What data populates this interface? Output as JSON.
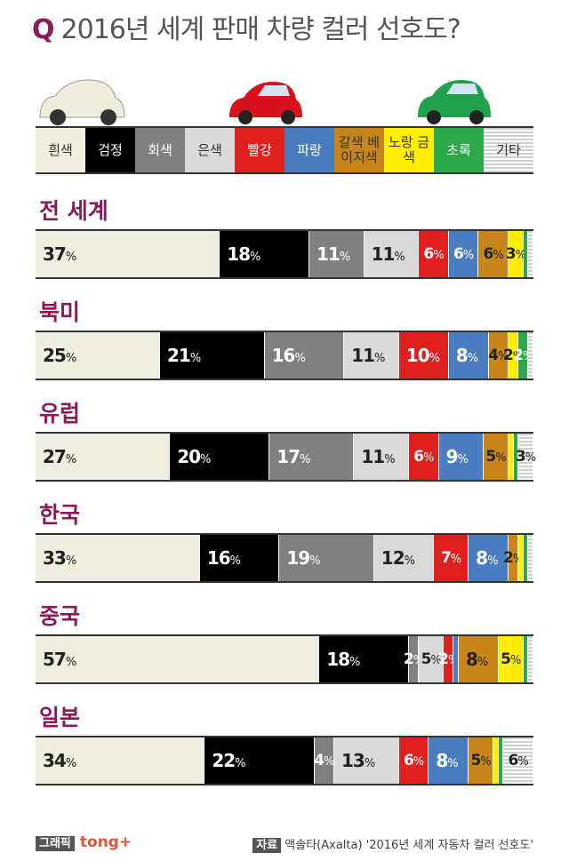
{
  "header": {
    "q": "Q",
    "title": "2016년 세계 판매 차량 컬러 선호도?"
  },
  "chart_data": {
    "type": "stacked-bar",
    "categories": [
      "전 세계",
      "북미",
      "유럽",
      "한국",
      "중국",
      "일본"
    ],
    "series": [
      {
        "name": "흰색",
        "color": "#efeee0",
        "values": [
          37,
          25,
          27,
          33,
          57,
          34
        ],
        "value_labels": [
          "37%",
          "25%",
          "27%",
          "33%",
          "57%",
          "34%"
        ]
      },
      {
        "name": "검정",
        "color": "#000000",
        "values": [
          18,
          21,
          20,
          16,
          18,
          22
        ],
        "value_labels": [
          "18%",
          "21%",
          "20%",
          "16%",
          "18%",
          "22%"
        ]
      },
      {
        "name": "회색",
        "color": "#808080",
        "values": [
          11,
          16,
          17,
          19,
          2,
          4
        ],
        "value_labels": [
          "11%",
          "16%",
          "17%",
          "19%",
          "2%",
          "4%"
        ]
      },
      {
        "name": "은색",
        "color": "#d9d9d9",
        "values": [
          11,
          11,
          11,
          12,
          5,
          13
        ],
        "value_labels": [
          "11%",
          "11%",
          "11%",
          "12%",
          "5%",
          "13%"
        ]
      },
      {
        "name": "빨강",
        "color": "#e0201f",
        "values": [
          6,
          10,
          6,
          7,
          2,
          6
        ],
        "value_labels": [
          "6%",
          "10%",
          "6%",
          "7%",
          "2%",
          "6%"
        ]
      },
      {
        "name": "파랑",
        "color": "#4a7cc0",
        "values": [
          6,
          8,
          9,
          8,
          1,
          8
        ],
        "value_labels": [
          "6%",
          "8%",
          "9%",
          "8%",
          null,
          "8%"
        ]
      },
      {
        "name": "갈색 베이지색",
        "color": "#c8861a",
        "values": [
          6,
          4,
          5,
          2,
          8,
          5
        ],
        "value_labels": [
          "6%",
          "4%",
          "5%",
          "2%",
          "8%",
          "5%"
        ]
      },
      {
        "name": "노랑 금색",
        "color": "#ffee00",
        "values": [
          3,
          2,
          1,
          1,
          5,
          1
        ],
        "value_labels": [
          "3%",
          "2%",
          null,
          null,
          "5%",
          null
        ]
      },
      {
        "name": "초록",
        "color": "#2aa84a",
        "values": [
          1,
          2,
          1,
          1,
          1,
          1
        ],
        "value_labels": [
          null,
          "2%",
          null,
          null,
          null,
          null
        ]
      },
      {
        "name": "기타",
        "color": "#cfcfcf",
        "pattern": "horizontal-stripes",
        "values": [
          1,
          1,
          3,
          1,
          1,
          6
        ],
        "value_labels": [
          null,
          null,
          "3%",
          null,
          null,
          "6%"
        ]
      }
    ]
  },
  "footer": {
    "graphic_tag": "그래픽",
    "brand": "tong+",
    "source_tag": "자료",
    "source": "액솔타(Axalta) '2016년 세계 자동차 컬러 선호도'"
  }
}
